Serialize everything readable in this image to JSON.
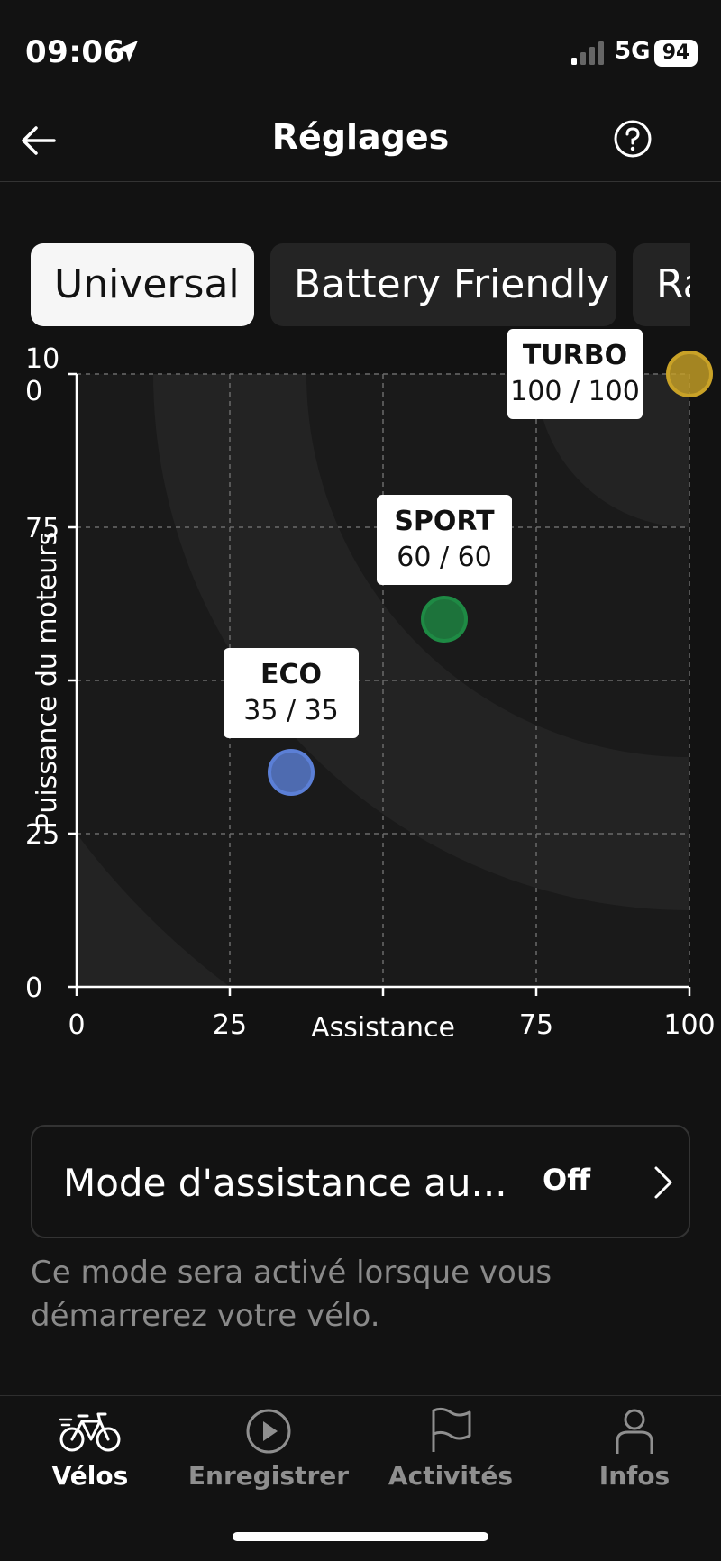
{
  "status_bar": {
    "time": "09:06",
    "network": "5G",
    "battery": "94"
  },
  "header": {
    "title": "Réglages",
    "back_icon": "arrow-left-icon",
    "help_icon": "question-circle-icon"
  },
  "tabs": [
    {
      "label": "Universal",
      "active": true
    },
    {
      "label": "Battery Friendly",
      "active": false
    },
    {
      "label": "Ra",
      "active": false
    }
  ],
  "chart_data": {
    "type": "scatter",
    "xlabel": "Assistance",
    "ylabel": "Puissance du moteurs",
    "xlim": [
      0,
      100
    ],
    "ylim": [
      0,
      100
    ],
    "x_ticks": [
      "0",
      "25",
      "",
      "75",
      "100"
    ],
    "y_ticks": [
      "0",
      "25",
      "",
      "75",
      "10\n0"
    ],
    "grid": true,
    "points": [
      {
        "name": "ECO",
        "value_text": "35 / 35",
        "x": 35,
        "y": 35,
        "color": "#5b7fd6"
      },
      {
        "name": "SPORT",
        "value_text": "60 / 60",
        "x": 60,
        "y": 60,
        "color": "#1e8a44"
      },
      {
        "name": "TURBO",
        "value_text": "100 / 100",
        "x": 100,
        "y": 100,
        "color": "#c9a227"
      }
    ]
  },
  "setting": {
    "label": "Mode d'assistance au...",
    "value": "Off",
    "helper": "Ce mode sera activé lorsque vous démarrerez votre vélo."
  },
  "bottom_nav": [
    {
      "label": "Vélos",
      "icon": "bike-icon",
      "active": true
    },
    {
      "label": "Enregistrer",
      "icon": "play-circle-icon",
      "active": false
    },
    {
      "label": "Activités",
      "icon": "flag-icon",
      "active": false
    },
    {
      "label": "Infos",
      "icon": "person-icon",
      "active": false
    }
  ]
}
